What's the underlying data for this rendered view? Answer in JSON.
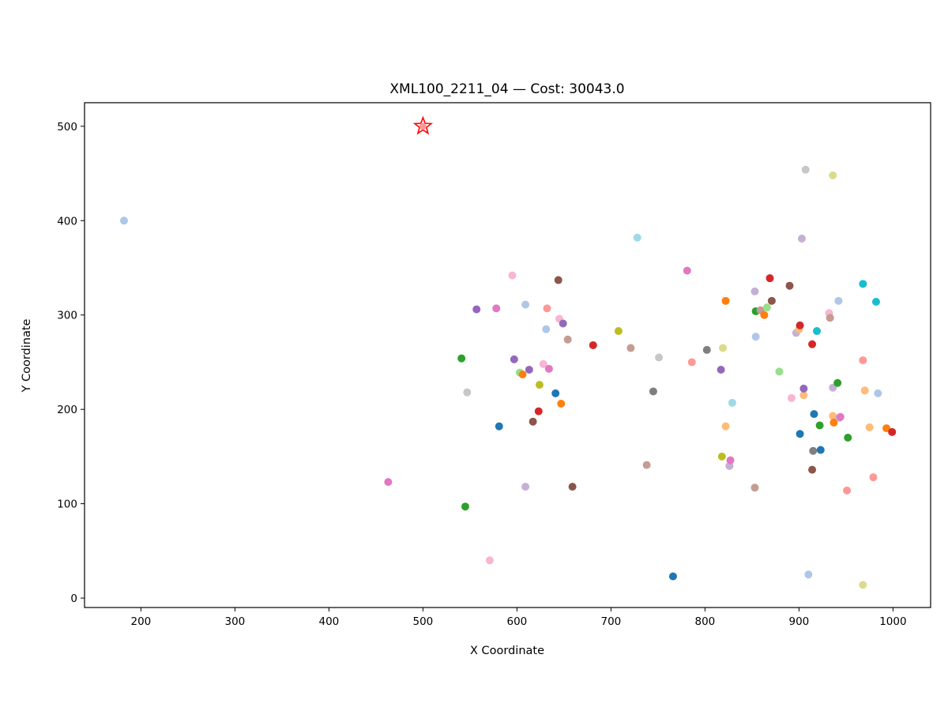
{
  "chart_data": {
    "type": "scatter",
    "title": "XML100_2211_04  —  Cost: 30043.0",
    "xlabel": "X Coordinate",
    "ylabel": "Y Coordinate",
    "xlim": [
      140,
      1040
    ],
    "ylim": [
      -10,
      525
    ],
    "xticks": [
      200,
      300,
      400,
      500,
      600,
      700,
      800,
      900,
      1000
    ],
    "yticks": [
      0,
      100,
      200,
      300,
      400,
      500
    ],
    "grid": false,
    "depot": {
      "x": 500,
      "y": 500,
      "color": "#ff0000",
      "marker": "star"
    },
    "points": [
      {
        "x": 182,
        "y": 400,
        "color": "#aec7e8"
      },
      {
        "x": 463,
        "y": 123,
        "color": "#e377c2"
      },
      {
        "x": 545,
        "y": 97,
        "color": "#2ca02c"
      },
      {
        "x": 541,
        "y": 254,
        "color": "#2ca02c"
      },
      {
        "x": 547,
        "y": 218,
        "color": "#c7c7c7"
      },
      {
        "x": 557,
        "y": 306,
        "color": "#9467bd"
      },
      {
        "x": 571,
        "y": 40,
        "color": "#f7b6d2"
      },
      {
        "x": 578,
        "y": 307,
        "color": "#e377c2"
      },
      {
        "x": 581,
        "y": 182,
        "color": "#1f77b4"
      },
      {
        "x": 595,
        "y": 342,
        "color": "#f7b6d2"
      },
      {
        "x": 597,
        "y": 253,
        "color": "#9467bd"
      },
      {
        "x": 603,
        "y": 239,
        "color": "#98df8a"
      },
      {
        "x": 606,
        "y": 237,
        "color": "#ff7f0e"
      },
      {
        "x": 609,
        "y": 311,
        "color": "#aec7e8"
      },
      {
        "x": 609,
        "y": 118,
        "color": "#c5b0d5"
      },
      {
        "x": 613,
        "y": 242,
        "color": "#9467bd"
      },
      {
        "x": 617,
        "y": 187,
        "color": "#8c564b"
      },
      {
        "x": 623,
        "y": 198,
        "color": "#d62728"
      },
      {
        "x": 624,
        "y": 226,
        "color": "#bcbd22"
      },
      {
        "x": 628,
        "y": 248,
        "color": "#f7b6d2"
      },
      {
        "x": 631,
        "y": 285,
        "color": "#aec7e8"
      },
      {
        "x": 632,
        "y": 307,
        "color": "#ff9896"
      },
      {
        "x": 634,
        "y": 243,
        "color": "#e377c2"
      },
      {
        "x": 641,
        "y": 217,
        "color": "#1f77b4"
      },
      {
        "x": 644,
        "y": 337,
        "color": "#8c564b"
      },
      {
        "x": 645,
        "y": 296,
        "color": "#f7b6d2"
      },
      {
        "x": 647,
        "y": 206,
        "color": "#ff7f0e"
      },
      {
        "x": 649,
        "y": 291,
        "color": "#9467bd"
      },
      {
        "x": 654,
        "y": 274,
        "color": "#c49c94"
      },
      {
        "x": 659,
        "y": 118,
        "color": "#8c564b"
      },
      {
        "x": 681,
        "y": 268,
        "color": "#d62728"
      },
      {
        "x": 708,
        "y": 283,
        "color": "#bcbd22"
      },
      {
        "x": 721,
        "y": 265,
        "color": "#c49c94"
      },
      {
        "x": 728,
        "y": 382,
        "color": "#9edae5"
      },
      {
        "x": 738,
        "y": 141,
        "color": "#c49c94"
      },
      {
        "x": 745,
        "y": 219,
        "color": "#7f7f7f"
      },
      {
        "x": 751,
        "y": 255,
        "color": "#c7c7c7"
      },
      {
        "x": 766,
        "y": 23,
        "color": "#1f77b4"
      },
      {
        "x": 781,
        "y": 347,
        "color": "#e377c2"
      },
      {
        "x": 786,
        "y": 250,
        "color": "#ff9896"
      },
      {
        "x": 802,
        "y": 263,
        "color": "#7f7f7f"
      },
      {
        "x": 817,
        "y": 242,
        "color": "#9467bd"
      },
      {
        "x": 818,
        "y": 150,
        "color": "#bcbd22"
      },
      {
        "x": 819,
        "y": 265,
        "color": "#dbdb8d"
      },
      {
        "x": 822,
        "y": 182,
        "color": "#ffbb78"
      },
      {
        "x": 822,
        "y": 315,
        "color": "#ff7f0e"
      },
      {
        "x": 826,
        "y": 140,
        "color": "#c5b0d5"
      },
      {
        "x": 827,
        "y": 146,
        "color": "#e377c2"
      },
      {
        "x": 829,
        "y": 207,
        "color": "#9edae5"
      },
      {
        "x": 853,
        "y": 325,
        "color": "#c5b0d5"
      },
      {
        "x": 853,
        "y": 117,
        "color": "#c49c94"
      },
      {
        "x": 854,
        "y": 277,
        "color": "#aec7e8"
      },
      {
        "x": 854,
        "y": 304,
        "color": "#2ca02c"
      },
      {
        "x": 859,
        "y": 305,
        "color": "#c49c94"
      },
      {
        "x": 863,
        "y": 300,
        "color": "#ff7f0e"
      },
      {
        "x": 866,
        "y": 308,
        "color": "#98df8a"
      },
      {
        "x": 869,
        "y": 339,
        "color": "#d62728"
      },
      {
        "x": 871,
        "y": 315,
        "color": "#8c564b"
      },
      {
        "x": 879,
        "y": 240,
        "color": "#98df8a"
      },
      {
        "x": 890,
        "y": 331,
        "color": "#8c564b"
      },
      {
        "x": 892,
        "y": 212,
        "color": "#f7b6d2"
      },
      {
        "x": 897,
        "y": 281,
        "color": "#c5b0d5"
      },
      {
        "x": 900,
        "y": 285,
        "color": "#ffbb78"
      },
      {
        "x": 901,
        "y": 289,
        "color": "#d62728"
      },
      {
        "x": 901,
        "y": 174,
        "color": "#1f77b4"
      },
      {
        "x": 903,
        "y": 381,
        "color": "#c5b0d5"
      },
      {
        "x": 905,
        "y": 215,
        "color": "#ffbb78"
      },
      {
        "x": 905,
        "y": 222,
        "color": "#9467bd"
      },
      {
        "x": 907,
        "y": 454,
        "color": "#c7c7c7"
      },
      {
        "x": 910,
        "y": 25,
        "color": "#aec7e8"
      },
      {
        "x": 914,
        "y": 269,
        "color": "#d62728"
      },
      {
        "x": 914,
        "y": 136,
        "color": "#8c564b"
      },
      {
        "x": 915,
        "y": 156,
        "color": "#7f7f7f"
      },
      {
        "x": 916,
        "y": 195,
        "color": "#1f77b4"
      },
      {
        "x": 919,
        "y": 283,
        "color": "#17becf"
      },
      {
        "x": 922,
        "y": 183,
        "color": "#2ca02c"
      },
      {
        "x": 923,
        "y": 157,
        "color": "#1f77b4"
      },
      {
        "x": 932,
        "y": 302,
        "color": "#f7b6d2"
      },
      {
        "x": 933,
        "y": 297,
        "color": "#c49c94"
      },
      {
        "x": 936,
        "y": 448,
        "color": "#dbdb8d"
      },
      {
        "x": 936,
        "y": 193,
        "color": "#ffbb78"
      },
      {
        "x": 936,
        "y": 223,
        "color": "#c5b0d5"
      },
      {
        "x": 937,
        "y": 186,
        "color": "#ff7f0e"
      },
      {
        "x": 941,
        "y": 228,
        "color": "#2ca02c"
      },
      {
        "x": 942,
        "y": 315,
        "color": "#aec7e8"
      },
      {
        "x": 943,
        "y": 191,
        "color": "#c5b0d5"
      },
      {
        "x": 944,
        "y": 192,
        "color": "#e377c2"
      },
      {
        "x": 951,
        "y": 114,
        "color": "#ff9896"
      },
      {
        "x": 952,
        "y": 170,
        "color": "#2ca02c"
      },
      {
        "x": 968,
        "y": 333,
        "color": "#17becf"
      },
      {
        "x": 968,
        "y": 14,
        "color": "#dbdb8d"
      },
      {
        "x": 968,
        "y": 252,
        "color": "#ff9896"
      },
      {
        "x": 970,
        "y": 220,
        "color": "#ffbb78"
      },
      {
        "x": 975,
        "y": 181,
        "color": "#ffbb78"
      },
      {
        "x": 979,
        "y": 128,
        "color": "#ff9896"
      },
      {
        "x": 982,
        "y": 314,
        "color": "#17becf"
      },
      {
        "x": 984,
        "y": 217,
        "color": "#aec7e8"
      },
      {
        "x": 993,
        "y": 180,
        "color": "#ff7f0e"
      },
      {
        "x": 999,
        "y": 176,
        "color": "#d62728"
      }
    ]
  }
}
